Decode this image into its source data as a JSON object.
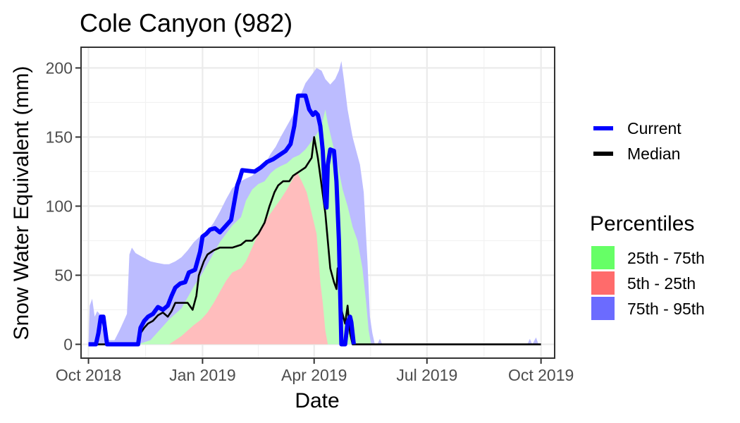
{
  "chart_data": {
    "type": "area",
    "title": "Cole Canyon (982)",
    "xlabel": "Date",
    "ylabel": "Snow Water Equivalent (mm)",
    "x_range": [
      "2018-09-25",
      "2019-10-12"
    ],
    "ylim": [
      -10,
      215
    ],
    "x_ticks": [
      {
        "date": "2018-10-01",
        "label": "Oct 2018"
      },
      {
        "date": "2019-01-01",
        "label": "Jan 2019"
      },
      {
        "date": "2019-04-01",
        "label": "Apr 2019"
      },
      {
        "date": "2019-07-01",
        "label": "Jul 2019"
      },
      {
        "date": "2019-10-01",
        "label": "Oct 2019"
      }
    ],
    "y_ticks": [
      0,
      50,
      100,
      150,
      200
    ],
    "grid": true,
    "legend": {
      "position": "right",
      "lines": [
        {
          "name": "Current",
          "color": "#0000ff"
        },
        {
          "name": "Median",
          "color": "#000000"
        }
      ],
      "percentiles_title": "Percentiles",
      "bands": [
        {
          "name": "25th - 75th",
          "color": "#66ff66"
        },
        {
          "name": "5th - 25th",
          "color": "#ff6b6b"
        },
        {
          "name": "75th - 95th",
          "color": "#6b6bff"
        }
      ]
    },
    "series": [
      {
        "name": "75th - 95th",
        "role": "band-upper",
        "color": "#6b6bff",
        "points": [
          [
            "2018-10-01",
            0
          ],
          [
            "2018-10-02",
            28
          ],
          [
            "2018-10-04",
            33
          ],
          [
            "2018-10-06",
            20
          ],
          [
            "2018-10-08",
            24
          ],
          [
            "2018-10-10",
            22
          ],
          [
            "2018-10-12",
            12
          ],
          [
            "2018-10-15",
            6
          ],
          [
            "2018-10-18",
            3
          ],
          [
            "2018-10-22",
            3
          ],
          [
            "2018-10-26",
            10
          ],
          [
            "2018-10-30",
            18
          ],
          [
            "2018-11-01",
            22
          ],
          [
            "2018-11-03",
            65
          ],
          [
            "2018-11-05",
            70
          ],
          [
            "2018-11-08",
            66
          ],
          [
            "2018-11-12",
            64
          ],
          [
            "2018-11-16",
            62
          ],
          [
            "2018-11-20",
            60
          ],
          [
            "2018-11-25",
            59
          ],
          [
            "2018-12-01",
            58
          ],
          [
            "2018-12-05",
            58
          ],
          [
            "2018-12-10",
            60
          ],
          [
            "2018-12-15",
            63
          ],
          [
            "2018-12-20",
            68
          ],
          [
            "2018-12-25",
            74
          ],
          [
            "2018-12-31",
            79
          ],
          [
            "2019-01-05",
            82
          ],
          [
            "2019-01-10",
            88
          ],
          [
            "2019-01-15",
            96
          ],
          [
            "2019-01-20",
            105
          ],
          [
            "2019-01-25",
            113
          ],
          [
            "2019-02-01",
            118
          ],
          [
            "2019-02-05",
            120
          ],
          [
            "2019-02-10",
            122
          ],
          [
            "2019-02-15",
            127
          ],
          [
            "2019-02-20",
            130
          ],
          [
            "2019-02-25",
            138
          ],
          [
            "2019-03-01",
            143
          ],
          [
            "2019-03-05",
            150
          ],
          [
            "2019-03-10",
            158
          ],
          [
            "2019-03-15",
            166
          ],
          [
            "2019-03-20",
            178
          ],
          [
            "2019-03-25",
            189
          ],
          [
            "2019-03-30",
            195
          ],
          [
            "2019-04-03",
            200
          ],
          [
            "2019-04-07",
            198
          ],
          [
            "2019-04-10",
            192
          ],
          [
            "2019-04-14",
            188
          ],
          [
            "2019-04-18",
            192
          ],
          [
            "2019-04-21",
            198
          ],
          [
            "2019-04-23",
            205
          ],
          [
            "2019-04-25",
            192
          ],
          [
            "2019-04-28",
            170
          ],
          [
            "2019-05-02",
            150
          ],
          [
            "2019-05-05",
            140
          ],
          [
            "2019-05-08",
            130
          ],
          [
            "2019-05-11",
            110
          ],
          [
            "2019-05-14",
            60
          ],
          [
            "2019-05-16",
            20
          ],
          [
            "2019-05-18",
            8
          ],
          [
            "2019-05-20",
            0
          ],
          [
            "2019-05-22",
            0
          ],
          [
            "2019-05-24",
            4
          ],
          [
            "2019-05-26",
            0
          ],
          [
            "2019-09-20",
            0
          ],
          [
            "2019-09-22",
            4
          ],
          [
            "2019-09-24",
            0
          ],
          [
            "2019-09-27",
            5
          ],
          [
            "2019-09-29",
            0
          ],
          [
            "2019-10-01",
            0
          ]
        ]
      },
      {
        "name": "25th - 75th",
        "role": "band-upper",
        "color": "#66ff66",
        "points": [
          [
            "2018-10-01",
            0
          ],
          [
            "2018-11-10",
            0
          ],
          [
            "2018-11-20",
            3
          ],
          [
            "2018-11-25",
            8
          ],
          [
            "2018-12-01",
            14
          ],
          [
            "2018-12-05",
            18
          ],
          [
            "2018-12-10",
            22
          ],
          [
            "2018-12-15",
            26
          ],
          [
            "2018-12-20",
            34
          ],
          [
            "2018-12-25",
            42
          ],
          [
            "2018-12-31",
            50
          ],
          [
            "2019-01-05",
            58
          ],
          [
            "2019-01-10",
            66
          ],
          [
            "2019-01-15",
            74
          ],
          [
            "2019-01-20",
            80
          ],
          [
            "2019-01-25",
            86
          ],
          [
            "2019-02-01",
            92
          ],
          [
            "2019-02-05",
            104
          ],
          [
            "2019-02-10",
            112
          ],
          [
            "2019-02-15",
            116
          ],
          [
            "2019-02-20",
            118
          ],
          [
            "2019-02-25",
            124
          ],
          [
            "2019-03-01",
            127
          ],
          [
            "2019-03-05",
            129
          ],
          [
            "2019-03-10",
            131
          ],
          [
            "2019-03-15",
            135
          ],
          [
            "2019-03-20",
            137
          ],
          [
            "2019-03-25",
            141
          ],
          [
            "2019-03-30",
            147
          ],
          [
            "2019-04-03",
            152
          ],
          [
            "2019-04-07",
            158
          ],
          [
            "2019-04-10",
            170
          ],
          [
            "2019-04-12",
            160
          ],
          [
            "2019-04-16",
            145
          ],
          [
            "2019-04-20",
            130
          ],
          [
            "2019-04-24",
            112
          ],
          [
            "2019-04-28",
            100
          ],
          [
            "2019-05-02",
            85
          ],
          [
            "2019-05-06",
            75
          ],
          [
            "2019-05-10",
            55
          ],
          [
            "2019-05-13",
            30
          ],
          [
            "2019-05-15",
            10
          ],
          [
            "2019-05-17",
            0
          ],
          [
            "2019-10-01",
            0
          ]
        ]
      },
      {
        "name": "25th percentile",
        "role": "band-lower",
        "color": "#ffffff",
        "points": [
          [
            "2018-10-01",
            0
          ],
          [
            "2018-12-05",
            0
          ],
          [
            "2018-12-10",
            3
          ],
          [
            "2018-12-15",
            6
          ],
          [
            "2018-12-20",
            10
          ],
          [
            "2018-12-25",
            14
          ],
          [
            "2018-12-31",
            18
          ],
          [
            "2019-01-05",
            23
          ],
          [
            "2019-01-10",
            30
          ],
          [
            "2019-01-15",
            38
          ],
          [
            "2019-01-20",
            46
          ],
          [
            "2019-01-25",
            52
          ],
          [
            "2019-02-01",
            55
          ],
          [
            "2019-02-05",
            60
          ],
          [
            "2019-02-10",
            70
          ],
          [
            "2019-02-15",
            80
          ],
          [
            "2019-02-20",
            88
          ],
          [
            "2019-02-25",
            95
          ],
          [
            "2019-03-01",
            100
          ],
          [
            "2019-03-05",
            105
          ],
          [
            "2019-03-10",
            112
          ],
          [
            "2019-03-15",
            120
          ],
          [
            "2019-03-18",
            125
          ],
          [
            "2019-03-22",
            118
          ],
          [
            "2019-03-26",
            110
          ],
          [
            "2019-03-30",
            95
          ],
          [
            "2019-04-03",
            80
          ],
          [
            "2019-04-06",
            45
          ],
          [
            "2019-04-08",
            30
          ],
          [
            "2019-04-10",
            10
          ],
          [
            "2019-04-12",
            0
          ],
          [
            "2019-10-01",
            0
          ]
        ]
      },
      {
        "name": "Median",
        "color": "#000000",
        "points": [
          [
            "2018-10-01",
            0
          ],
          [
            "2018-11-10",
            0
          ],
          [
            "2018-11-12",
            8
          ],
          [
            "2018-11-15",
            12
          ],
          [
            "2018-11-18",
            15
          ],
          [
            "2018-11-22",
            17
          ],
          [
            "2018-11-26",
            21
          ],
          [
            "2018-11-30",
            23
          ],
          [
            "2018-12-04",
            20
          ],
          [
            "2018-12-07",
            24
          ],
          [
            "2018-12-10",
            30
          ],
          [
            "2018-12-20",
            30
          ],
          [
            "2018-12-24",
            25
          ],
          [
            "2018-12-27",
            35
          ],
          [
            "2018-12-29",
            50
          ],
          [
            "2019-01-02",
            60
          ],
          [
            "2019-01-05",
            65
          ],
          [
            "2019-01-10",
            68
          ],
          [
            "2019-01-15",
            70
          ],
          [
            "2019-01-25",
            70
          ],
          [
            "2019-02-01",
            72
          ],
          [
            "2019-02-05",
            75
          ],
          [
            "2019-02-10",
            75
          ],
          [
            "2019-02-15",
            80
          ],
          [
            "2019-02-20",
            88
          ],
          [
            "2019-02-24",
            100
          ],
          [
            "2019-02-28",
            110
          ],
          [
            "2019-03-03",
            115
          ],
          [
            "2019-03-07",
            118
          ],
          [
            "2019-03-12",
            118
          ],
          [
            "2019-03-15",
            122
          ],
          [
            "2019-03-20",
            125
          ],
          [
            "2019-03-25",
            128
          ],
          [
            "2019-03-30",
            135
          ],
          [
            "2019-04-01",
            150
          ],
          [
            "2019-04-04",
            135
          ],
          [
            "2019-04-07",
            115
          ],
          [
            "2019-04-10",
            95
          ],
          [
            "2019-04-12",
            75
          ],
          [
            "2019-04-14",
            55
          ],
          [
            "2019-04-17",
            45
          ],
          [
            "2019-04-19",
            40
          ],
          [
            "2019-04-20",
            55
          ],
          [
            "2019-04-23",
            25
          ],
          [
            "2019-04-26",
            15
          ],
          [
            "2019-04-28",
            28
          ],
          [
            "2019-04-30",
            8
          ],
          [
            "2019-05-02",
            0
          ],
          [
            "2019-10-01",
            0
          ]
        ]
      },
      {
        "name": "Current",
        "color": "#0000ff",
        "points": [
          [
            "2018-10-01",
            0
          ],
          [
            "2018-10-07",
            0
          ],
          [
            "2018-10-09",
            8
          ],
          [
            "2018-10-11",
            20
          ],
          [
            "2018-10-13",
            20
          ],
          [
            "2018-10-16",
            0
          ],
          [
            "2018-10-28",
            0
          ],
          [
            "2018-11-10",
            0
          ],
          [
            "2018-11-12",
            12
          ],
          [
            "2018-11-15",
            17
          ],
          [
            "2018-11-18",
            20
          ],
          [
            "2018-11-22",
            22
          ],
          [
            "2018-11-26",
            27
          ],
          [
            "2018-11-30",
            25
          ],
          [
            "2018-12-04",
            28
          ],
          [
            "2018-12-07",
            35
          ],
          [
            "2018-12-10",
            41
          ],
          [
            "2018-12-14",
            44
          ],
          [
            "2018-12-18",
            45
          ],
          [
            "2018-12-21",
            52
          ],
          [
            "2018-12-26",
            54
          ],
          [
            "2018-12-30",
            67
          ],
          [
            "2019-01-01",
            78
          ],
          [
            "2019-01-04",
            80
          ],
          [
            "2019-01-07",
            83
          ],
          [
            "2019-01-11",
            84
          ],
          [
            "2019-01-15",
            81
          ],
          [
            "2019-01-19",
            85
          ],
          [
            "2019-01-24",
            90
          ],
          [
            "2019-01-29",
            115
          ],
          [
            "2019-01-31",
            120
          ],
          [
            "2019-02-02",
            126
          ],
          [
            "2019-02-12",
            125
          ],
          [
            "2019-02-17",
            128
          ],
          [
            "2019-02-22",
            132
          ],
          [
            "2019-02-27",
            134
          ],
          [
            "2019-03-04",
            137
          ],
          [
            "2019-03-09",
            140
          ],
          [
            "2019-03-13",
            145
          ],
          [
            "2019-03-16",
            158
          ],
          [
            "2019-03-19",
            180
          ],
          [
            "2019-03-25",
            180
          ],
          [
            "2019-03-28",
            170
          ],
          [
            "2019-03-31",
            166
          ],
          [
            "2019-04-02",
            168
          ],
          [
            "2019-04-04",
            166
          ],
          [
            "2019-04-06",
            158
          ],
          [
            "2019-04-08",
            140
          ],
          [
            "2019-04-10",
            103
          ],
          [
            "2019-04-11",
            99
          ],
          [
            "2019-04-12",
            130
          ],
          [
            "2019-04-14",
            141
          ],
          [
            "2019-04-17",
            140
          ],
          [
            "2019-04-19",
            118
          ],
          [
            "2019-04-21",
            75
          ],
          [
            "2019-04-23",
            0
          ],
          [
            "2019-04-26",
            0
          ],
          [
            "2019-04-28",
            16
          ],
          [
            "2019-04-30",
            20
          ],
          [
            "2019-05-01",
            16
          ],
          [
            "2019-05-03",
            0
          ]
        ]
      }
    ]
  }
}
